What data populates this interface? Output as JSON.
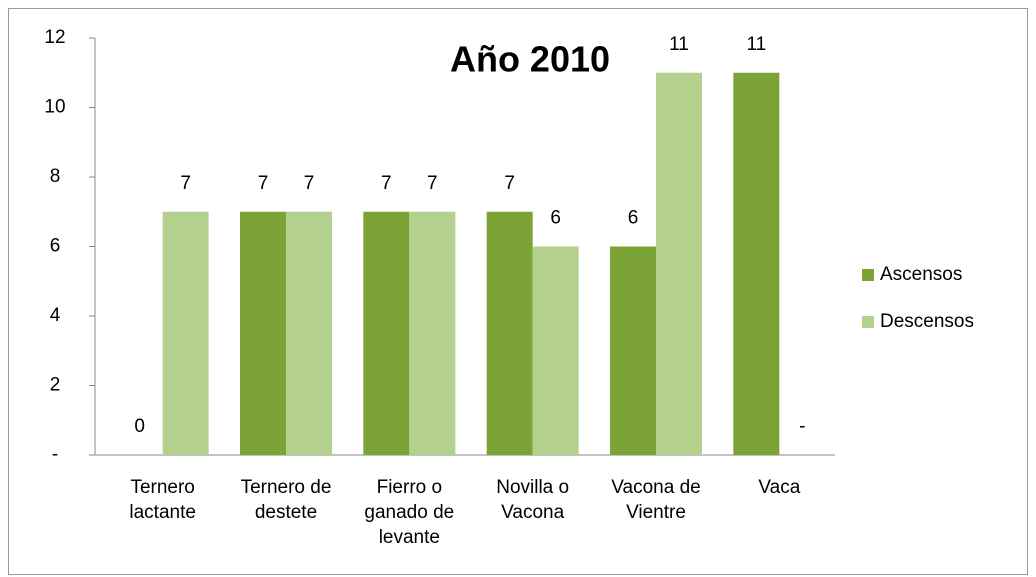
{
  "chart_data": {
    "type": "bar",
    "title": "Año 2010",
    "categories": [
      "Ternero lactante",
      "Ternero de destete",
      "Fierro o ganado de levante",
      "Novilla o Vacona",
      "Vacona de Vientre",
      "Vaca"
    ],
    "series": [
      {
        "name": "Ascensos",
        "color": "#7ba335",
        "values": [
          0,
          7,
          7,
          7,
          6,
          11
        ]
      },
      {
        "name": "Descensos",
        "color": "#b3d18c",
        "values": [
          7,
          7,
          7,
          6,
          11,
          0
        ],
        "value_labels": [
          "7",
          "7",
          "7",
          "6",
          "11",
          "-"
        ]
      }
    ],
    "ylim": [
      0,
      12
    ],
    "yticks": [
      {
        "value": 0,
        "label": "-"
      },
      2,
      4,
      6,
      8,
      10,
      12
    ],
    "grid": false,
    "legend": "right"
  }
}
